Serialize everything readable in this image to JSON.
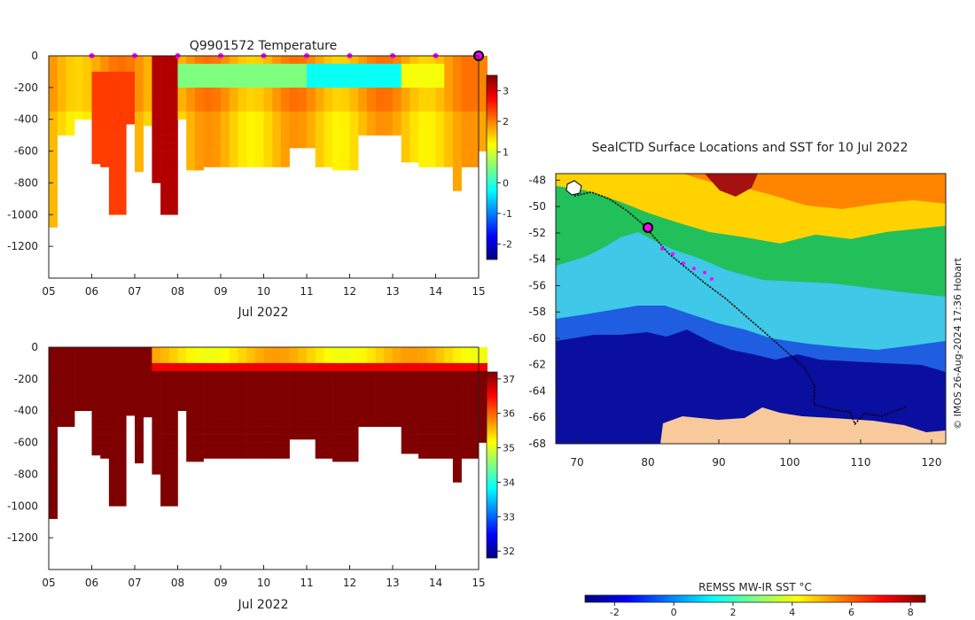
{
  "temp_plot": {
    "title": "Q9901572  Temperature",
    "xlabel": "Jul 2022",
    "x_ticks": [
      "05",
      "06",
      "07",
      "08",
      "09",
      "10",
      "11",
      "12",
      "13",
      "14",
      "15"
    ],
    "y_ticks": [
      "0",
      "-200",
      "-400",
      "-600",
      "-800",
      "-1000",
      "-1200"
    ],
    "colorbar_ticks": [
      "3",
      "2",
      "1",
      "0",
      "-1",
      "-2"
    ]
  },
  "sal_plot": {
    "xlabel": "Jul 2022",
    "x_ticks": [
      "05",
      "06",
      "07",
      "08",
      "09",
      "10",
      "11",
      "12",
      "13",
      "14",
      "15"
    ],
    "y_ticks": [
      "0",
      "-200",
      "-400",
      "-600",
      "-800",
      "-1000",
      "-1200"
    ],
    "colorbar_ticks": [
      "37",
      "36",
      "35",
      "34",
      "33",
      "32"
    ]
  },
  "map_plot": {
    "title": "SealCTD Surface Locations and SST for 10 Jul 2022",
    "x_ticks": [
      "70",
      "80",
      "90",
      "100",
      "110",
      "120"
    ],
    "y_ticks": [
      "-48",
      "-50",
      "-52",
      "-54",
      "-56",
      "-58",
      "-60",
      "-62",
      "-64",
      "-66",
      "-68"
    ],
    "colorbar_label": "REMSS MW-IR SST °C",
    "colorbar_ticks": [
      "-2",
      "0",
      "2",
      "4",
      "6",
      "8"
    ],
    "credit": "© IMOS 26-Aug-2024 17:36 Hobart"
  },
  "colors": {
    "jet": [
      "#00007f",
      "#0000ff",
      "#007fff",
      "#00ffff",
      "#7fff7f",
      "#ffff00",
      "#ff7f00",
      "#ff0000",
      "#7f0000"
    ],
    "land": "#f8c99a",
    "marker": "#ff00ff",
    "track": "#000000"
  },
  "chart_data": [
    {
      "type": "heatmap",
      "title": "Q9901572  Temperature",
      "xlabel": "Jul 2022",
      "ylabel": "",
      "x_range": [
        "2022-07-05",
        "2022-07-15"
      ],
      "ylim": [
        -1400,
        0
      ],
      "colorbar_range": [
        -2.5,
        3.5
      ],
      "max_depth_profile": [
        {
          "day": 5.0,
          "depth": -1080
        },
        {
          "day": 5.2,
          "depth": -500
        },
        {
          "day": 5.5,
          "depth": -400
        },
        {
          "day": 5.9,
          "depth": -680
        },
        {
          "day": 6.2,
          "depth": -700
        },
        {
          "day": 6.4,
          "depth": -1000
        },
        {
          "day": 6.7,
          "depth": -430
        },
        {
          "day": 7.0,
          "depth": -730
        },
        {
          "day": 7.2,
          "depth": -440
        },
        {
          "day": 7.4,
          "depth": -800
        },
        {
          "day": 7.5,
          "depth": -1000
        },
        {
          "day": 7.9,
          "depth": -400
        },
        {
          "day": 8.1,
          "depth": -720
        },
        {
          "day": 8.6,
          "depth": -700
        },
        {
          "day": 9.3,
          "depth": -700
        },
        {
          "day": 10.0,
          "depth": -700
        },
        {
          "day": 10.5,
          "depth": -580
        },
        {
          "day": 11.0,
          "depth": -700
        },
        {
          "day": 11.5,
          "depth": -720
        },
        {
          "day": 12.0,
          "depth": -500
        },
        {
          "day": 13.0,
          "depth": -670
        },
        {
          "day": 13.5,
          "depth": -700
        },
        {
          "day": 14.2,
          "depth": -850
        },
        {
          "day": 14.5,
          "depth": -700
        },
        {
          "day": 14.8,
          "depth": -600
        }
      ],
      "surface_markers_day": [
        6,
        7,
        8,
        9,
        10,
        11,
        12,
        13,
        14
      ],
      "current_marker_day": 15
    },
    {
      "type": "heatmap",
      "title": "",
      "xlabel": "Jul 2022",
      "ylabel": "",
      "x_range": [
        "2022-07-05",
        "2022-07-15"
      ],
      "ylim": [
        -1400,
        0
      ],
      "colorbar_range": [
        31.8,
        37.2
      ]
    },
    {
      "type": "scatter",
      "title": "SealCTD Surface Locations and SST for 10 Jul 2022",
      "xlim": [
        67,
        122
      ],
      "ylim": [
        -68,
        -47.5
      ],
      "colorbar_label": "REMSS MW-IR SST °C",
      "colorbar_range": [
        -3,
        8.5
      ],
      "track": [
        [
          69.6,
          -49.2
        ],
        [
          72,
          -48.9
        ],
        [
          74.5,
          -49.4
        ],
        [
          77,
          -50.3
        ],
        [
          79.4,
          -51.4
        ],
        [
          81,
          -52.4
        ],
        [
          83,
          -53.6
        ],
        [
          85.5,
          -54.7
        ],
        [
          88,
          -55.8
        ],
        [
          91,
          -57.0
        ],
        [
          94,
          -58.4
        ],
        [
          97,
          -59.8
        ],
        [
          99.5,
          -61.0
        ],
        [
          102,
          -62.2
        ],
        [
          103.5,
          -63.6
        ],
        [
          103.4,
          -65.0
        ],
        [
          106,
          -65.4
        ],
        [
          108.5,
          -65.6
        ],
        [
          109.2,
          -66.5
        ],
        [
          110.5,
          -65.7
        ],
        [
          113,
          -65.9
        ],
        [
          115,
          -65.5
        ],
        [
          116.5,
          -65.2
        ]
      ],
      "recent_locations": [
        [
          82,
          -53.2
        ],
        [
          83.5,
          -53.6
        ],
        [
          85,
          -54.3
        ],
        [
          86.5,
          -54.7
        ],
        [
          88,
          -55.0
        ],
        [
          89,
          -55.5
        ]
      ],
      "current_location": [
        80,
        -51.6
      ]
    }
  ]
}
